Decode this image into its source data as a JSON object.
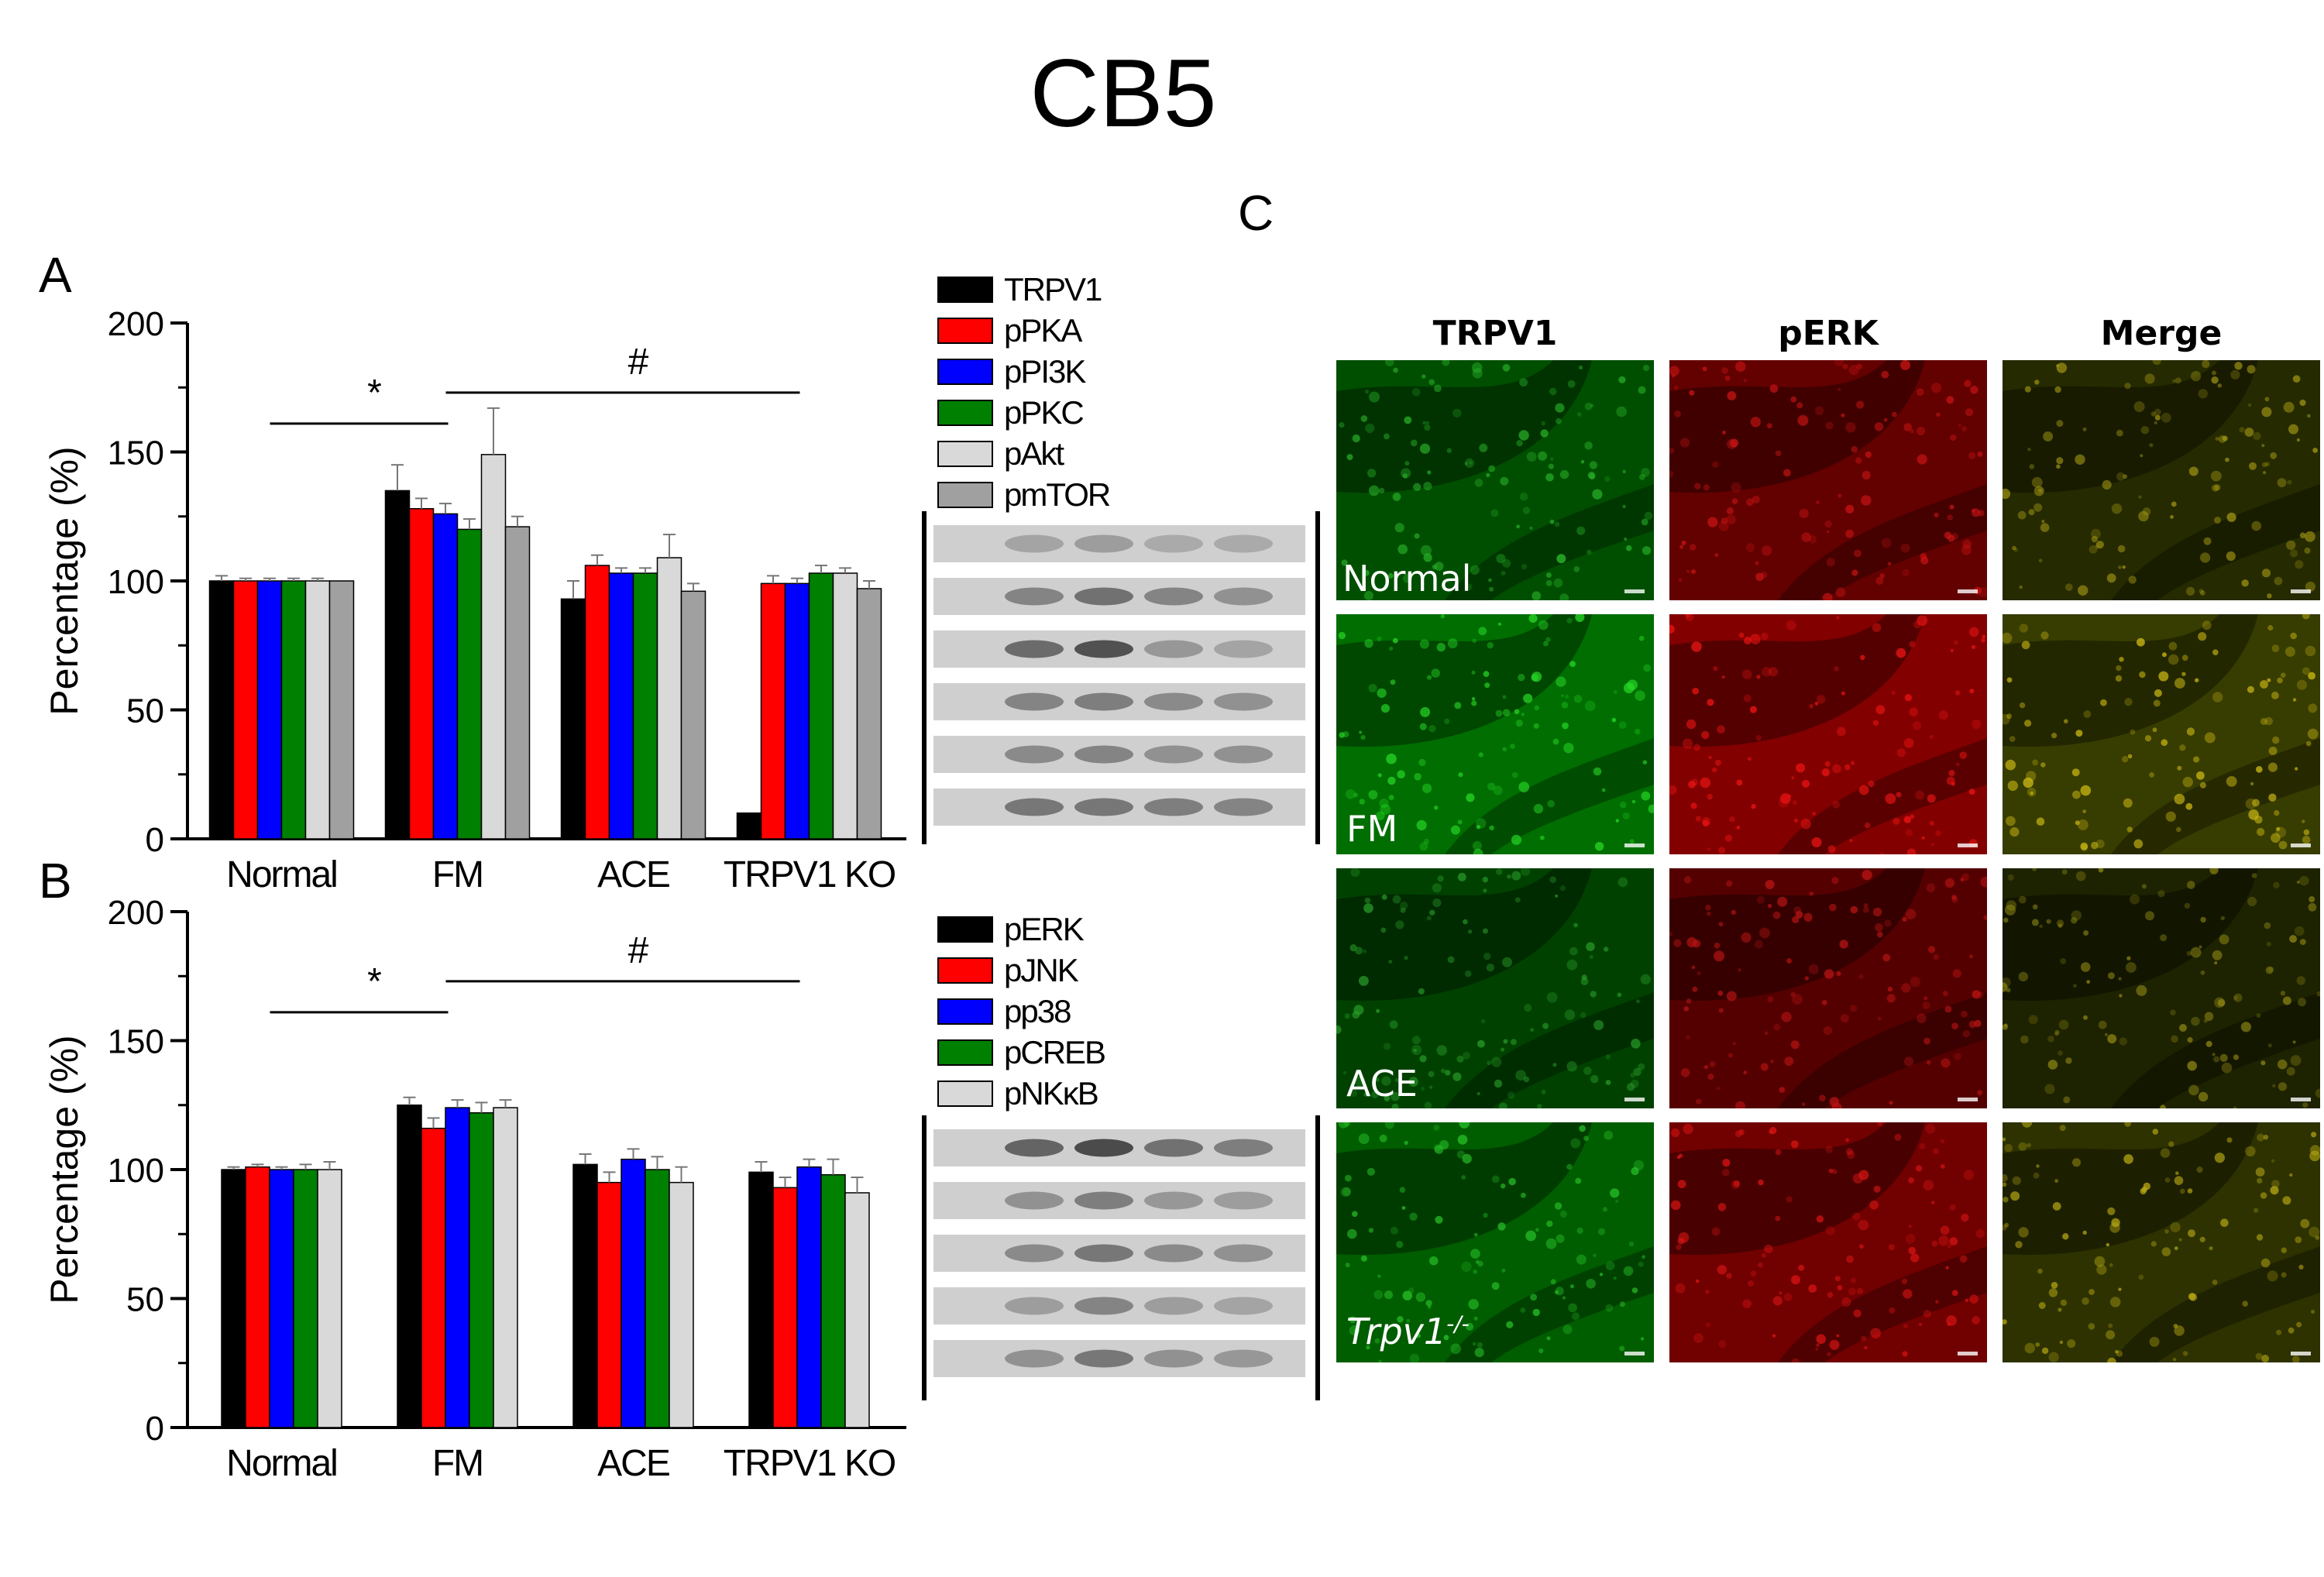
{
  "figure": {
    "title": "CB5",
    "panel_letters": {
      "a": "A",
      "b": "B",
      "c": "C"
    }
  },
  "chart_data": [
    {
      "type": "bar",
      "panel": "A",
      "categories": [
        "Normal",
        "FM",
        "ACE",
        "TRPV1 KO"
      ],
      "ylabel": "Percentage (%)",
      "ylim": [
        0,
        200
      ],
      "yticks": [
        0,
        50,
        100,
        150,
        200
      ],
      "grid": false,
      "legend": "right",
      "series": [
        {
          "name": "TRPV1",
          "color": "#000000",
          "values": [
            100,
            135,
            93,
            10
          ],
          "errors": [
            2,
            10,
            7,
            0
          ]
        },
        {
          "name": "pPKA",
          "color": "#ff0000",
          "values": [
            100,
            128,
            106,
            99
          ],
          "errors": [
            1,
            4,
            4,
            3
          ]
        },
        {
          "name": "pPI3K",
          "color": "#0000ff",
          "values": [
            100,
            126,
            103,
            99
          ],
          "errors": [
            1,
            4,
            2,
            2
          ]
        },
        {
          "name": "pPKC",
          "color": "#008000",
          "values": [
            100,
            120,
            103,
            103
          ],
          "errors": [
            1,
            4,
            2,
            3
          ]
        },
        {
          "name": "pAkt",
          "color": "#d9d9d9",
          "values": [
            100,
            149,
            109,
            103
          ],
          "errors": [
            1,
            18,
            9,
            2
          ]
        },
        {
          "name": "pmTOR",
          "color": "#a0a0a0",
          "values": [
            100,
            121,
            96,
            97
          ],
          "errors": [
            0,
            4,
            3,
            3
          ]
        }
      ],
      "annotations": [
        {
          "symbol": "*",
          "from": "Normal",
          "to": "FM"
        },
        {
          "symbol": "#",
          "from": "FM",
          "to": "TRPV1 KO"
        }
      ]
    },
    {
      "type": "bar",
      "panel": "B",
      "categories": [
        "Normal",
        "FM",
        "ACE",
        "TRPV1 KO"
      ],
      "ylabel": "Percentage (%)",
      "ylim": [
        0,
        200
      ],
      "yticks": [
        0,
        50,
        100,
        150,
        200
      ],
      "grid": false,
      "legend": "right",
      "series": [
        {
          "name": "pERK",
          "color": "#000000",
          "values": [
            100,
            125,
            102,
            99
          ],
          "errors": [
            1,
            3,
            4,
            4
          ]
        },
        {
          "name": "pJNK",
          "color": "#ff0000",
          "values": [
            101,
            116,
            95,
            93
          ],
          "errors": [
            1,
            4,
            4,
            4
          ]
        },
        {
          "name": "pp38",
          "color": "#0000ff",
          "values": [
            100,
            124,
            104,
            101
          ],
          "errors": [
            1,
            3,
            4,
            3
          ]
        },
        {
          "name": "pCREB",
          "color": "#008000",
          "values": [
            100,
            122,
            100,
            98
          ],
          "errors": [
            2,
            4,
            5,
            6
          ]
        },
        {
          "name": "pNKκB",
          "color": "#d9d9d9",
          "values": [
            100,
            124,
            95,
            91
          ],
          "errors": [
            3,
            3,
            6,
            6
          ]
        }
      ],
      "annotations": [
        {
          "symbol": "*",
          "from": "Normal",
          "to": "FM"
        },
        {
          "symbol": "#",
          "from": "FM",
          "to": "TRPV1 KO"
        }
      ]
    }
  ],
  "blots": {
    "a": {
      "bands": [
        [
          0.3,
          0.35,
          0.25,
          0.25
        ],
        [
          0.55,
          0.7,
          0.55,
          0.45
        ],
        [
          0.75,
          0.95,
          0.4,
          0.3
        ],
        [
          0.55,
          0.6,
          0.5,
          0.45
        ],
        [
          0.5,
          0.55,
          0.45,
          0.45
        ],
        [
          0.65,
          0.65,
          0.6,
          0.55
        ]
      ]
    },
    "b": {
      "bands": [
        [
          0.8,
          1.0,
          0.7,
          0.6
        ],
        [
          0.45,
          0.6,
          0.4,
          0.35
        ],
        [
          0.5,
          0.65,
          0.5,
          0.45
        ],
        [
          0.35,
          0.55,
          0.35,
          0.3
        ],
        [
          0.45,
          0.65,
          0.45,
          0.4
        ]
      ]
    }
  },
  "panel_c": {
    "columns": [
      {
        "label": "TRPV1",
        "color": "#00b050",
        "channel": "green"
      },
      {
        "label": "pERK",
        "color": "#e00000",
        "channel": "red"
      },
      {
        "label": "Merge",
        "color": "#f5b800",
        "channel": "merge"
      }
    ],
    "rows": [
      {
        "label": "Normal",
        "superscript": "",
        "italic": false,
        "intensity": 0.55
      },
      {
        "label": "FM",
        "superscript": "",
        "italic": false,
        "intensity": 1.0
      },
      {
        "label": "ACE",
        "superscript": "",
        "italic": false,
        "intensity": 0.35
      },
      {
        "label": "Trpv1",
        "superscript": "-/-",
        "italic": true,
        "intensity": 0.75
      }
    ]
  }
}
